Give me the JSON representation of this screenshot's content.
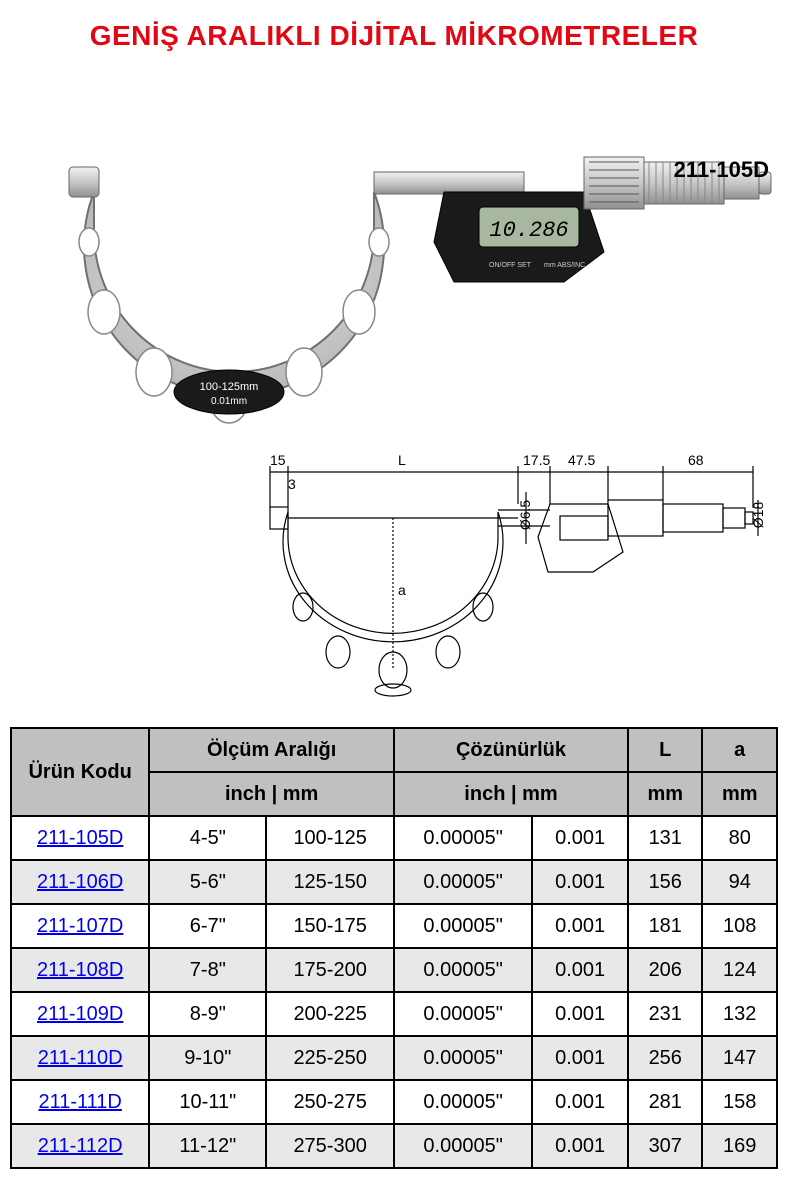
{
  "title": {
    "text": "GENİŞ ARALIKLI DİJİTAL MİKROMETRELER",
    "color": "#e30613",
    "fontsize": 28
  },
  "product_photo": {
    "model_label": "211-105D",
    "display_value": "10.286",
    "plate_range": "100-125mm",
    "plate_res": "0.01mm",
    "frame_color": "#c8c8c8",
    "spindle_color": "#d9d9d9",
    "digital_body_color": "#1a1a1a",
    "lcd_color": "#a8b8a0"
  },
  "tech_drawing": {
    "dims": {
      "d15": "15",
      "d3": "3",
      "L": "L",
      "d175": "17.5",
      "d475": "47.5",
      "d68": "68",
      "phi65": "Ø6.5",
      "phi18": "Ø18",
      "a": "a"
    },
    "line_color": "#000000"
  },
  "table": {
    "header_bg": "#c0c0c0",
    "alt_row_bg": "#e8e8e8",
    "border_color": "#000000",
    "link_color": "#0000ee",
    "columns": {
      "code": "Ürün Kodu",
      "range": "Ölçüm Aralığı",
      "range_sub": "inch | mm",
      "res": "Çözünürlük",
      "res_sub": "inch | mm",
      "L": "L",
      "L_sub": "mm",
      "a": "a",
      "a_sub": "mm"
    },
    "rows": [
      {
        "code": "211-105D",
        "inch": "4-5\"",
        "mm": "100-125",
        "res_inch": "0.00005\"",
        "res_mm": "0.001",
        "L": "131",
        "a": "80"
      },
      {
        "code": "211-106D",
        "inch": "5-6\"",
        "mm": "125-150",
        "res_inch": "0.00005\"",
        "res_mm": "0.001",
        "L": "156",
        "a": "94"
      },
      {
        "code": "211-107D",
        "inch": "6-7\"",
        "mm": "150-175",
        "res_inch": "0.00005\"",
        "res_mm": "0.001",
        "L": "181",
        "a": "108"
      },
      {
        "code": "211-108D",
        "inch": "7-8\"",
        "mm": "175-200",
        "res_inch": "0.00005\"",
        "res_mm": "0.001",
        "L": "206",
        "a": "124"
      },
      {
        "code": "211-109D",
        "inch": "8-9\"",
        "mm": "200-225",
        "res_inch": "0.00005\"",
        "res_mm": "0.001",
        "L": "231",
        "a": "132"
      },
      {
        "code": "211-110D",
        "inch": "9-10\"",
        "mm": "225-250",
        "res_inch": "0.00005\"",
        "res_mm": "0.001",
        "L": "256",
        "a": "147"
      },
      {
        "code": "211-111D",
        "inch": "10-11\"",
        "mm": "250-275",
        "res_inch": "0.00005\"",
        "res_mm": "0.001",
        "L": "281",
        "a": "158"
      },
      {
        "code": "211-112D",
        "inch": "11-12\"",
        "mm": "275-300",
        "res_inch": "0.00005\"",
        "res_mm": "0.001",
        "L": "307",
        "a": "169"
      }
    ]
  }
}
